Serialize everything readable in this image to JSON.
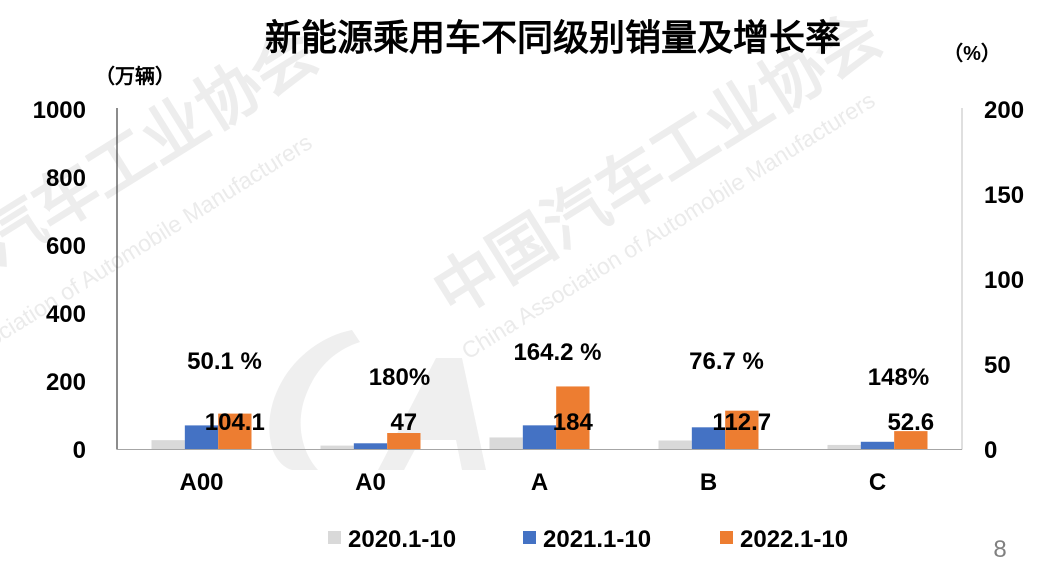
{
  "page": {
    "number": "8"
  },
  "watermark": {
    "cn": "中国汽车工业协会",
    "en": "China Association of Automobile Manufacturers"
  },
  "chart_data": {
    "type": "bar",
    "title": "新能源乘用车不同级别销量及增长率",
    "ylabel": "（万辆）",
    "y2label": "（%）",
    "ylim": [
      0,
      1000
    ],
    "y2lim": [
      0,
      200
    ],
    "yticks": [
      0,
      200,
      400,
      600,
      800,
      1000
    ],
    "y2ticks": [
      0,
      50,
      100,
      150,
      200
    ],
    "categories": [
      "A00",
      "A0",
      "A",
      "B",
      "C"
    ],
    "series": [
      {
        "name": "2020.1-10",
        "color": "#d9d9d9",
        "values": [
          26,
          10,
          34,
          25,
          12
        ]
      },
      {
        "name": "2021.1-10",
        "color": "#4472c4",
        "values": [
          69.4,
          16.8,
          69.6,
          63.8,
          21.2
        ]
      },
      {
        "name": "2022.1-10",
        "color": "#ed7d31",
        "values": [
          104.1,
          47,
          184,
          112.7,
          52.6
        ],
        "data_labels": [
          "104.1",
          "47",
          "184",
          "112.7",
          "52.6"
        ]
      }
    ],
    "growth_rate": {
      "values": [
        50.1,
        180,
        164.2,
        76.7,
        148
      ],
      "labels": [
        "50.1 %",
        "180%",
        "164.2 %",
        "76.7 %",
        "148%"
      ]
    },
    "legend": "bottom",
    "grid": false
  }
}
